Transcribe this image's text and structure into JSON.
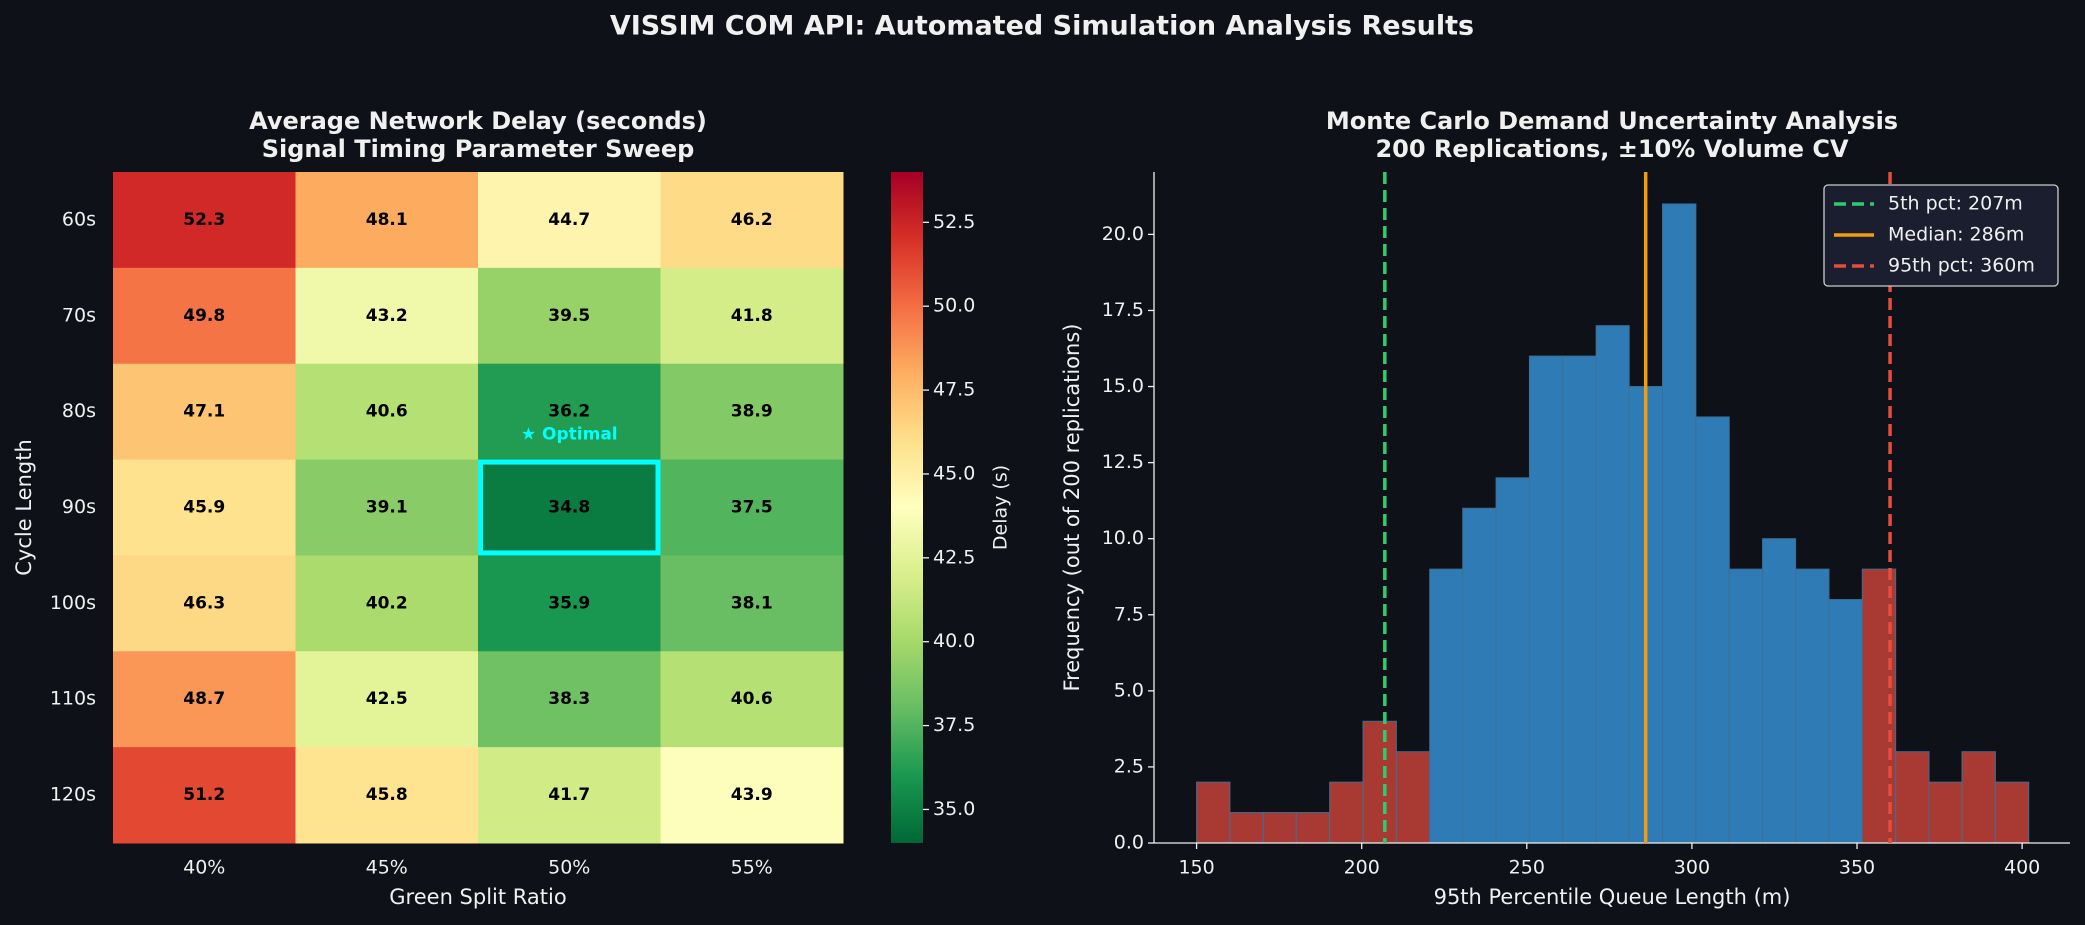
{
  "title": "VISSIM COM API: Automated Simulation Analysis Results",
  "chart_data": [
    {
      "type": "heatmap",
      "title": "Average Network Delay (seconds)",
      "subtitle": "Signal Timing Parameter Sweep",
      "x_label": "Green Split Ratio",
      "y_label": "Cycle Length",
      "x_categories": [
        "40%",
        "45%",
        "50%",
        "55%"
      ],
      "y_categories": [
        "60s",
        "70s",
        "80s",
        "90s",
        "100s",
        "110s",
        "120s"
      ],
      "values": [
        [
          52.3,
          48.1,
          44.7,
          46.2
        ],
        [
          49.8,
          43.2,
          39.5,
          41.8
        ],
        [
          47.1,
          40.6,
          36.2,
          38.9
        ],
        [
          45.9,
          39.1,
          34.8,
          37.5
        ],
        [
          46.3,
          40.2,
          35.9,
          38.1
        ],
        [
          48.7,
          42.5,
          38.3,
          40.6
        ],
        [
          51.2,
          45.8,
          41.7,
          43.9
        ]
      ],
      "colormap": [
        "#006837",
        "#1a9850",
        "#66bd63",
        "#a6d96a",
        "#d9ef8b",
        "#ffffbf",
        "#fee08b",
        "#fdae61",
        "#f46d43",
        "#d73027",
        "#a50026"
      ],
      "colorbar_label": "Delay (s)",
      "clim": [
        34.0,
        54.0
      ],
      "cticks": [
        {
          "value": 35,
          "label": "35.0"
        },
        37.5,
        {
          "value": 40,
          "label": "40.0"
        },
        42.5,
        {
          "value": 45,
          "label": "45.0"
        },
        47.5,
        {
          "value": 50,
          "label": "50.0"
        },
        52.5
      ],
      "highlight": {
        "row": 3,
        "col": 2,
        "label": "★ Optimal",
        "color": "#00ffff"
      }
    },
    {
      "type": "histogram",
      "title": "Monte Carlo Demand Uncertainty Analysis",
      "subtitle": "200 Replications, ±10% Volume CV",
      "x_label": "95th Percentile Queue Length (m)",
      "y_label": "Frequency (out of 200 replications)",
      "bins": [
        150,
        160.1,
        170.2,
        180.2,
        190.3,
        200.4,
        210.5,
        220.6,
        230.6,
        240.7,
        250.8,
        260.9,
        271.0,
        281.0,
        291.1,
        301.2,
        311.3,
        321.4,
        331.4,
        341.5,
        351.6,
        361.7,
        371.8,
        381.8,
        391.9,
        402.0
      ],
      "values": [
        2,
        1,
        1,
        1,
        2,
        4,
        3,
        9,
        11,
        12,
        16,
        16,
        17,
        15,
        21,
        14,
        9,
        10,
        9,
        8,
        9,
        3,
        2,
        3,
        2
      ],
      "colors": [
        "#a93a33",
        "#a93a33",
        "#a93a33",
        "#a93a33",
        "#a93a33",
        "#a93a33",
        "#a93a33",
        "#2f7bb5",
        "#2f7bb5",
        "#2f7bb5",
        "#2f7bb5",
        "#2f7bb5",
        "#2f7bb5",
        "#2f7bb5",
        "#2f7bb5",
        "#2f7bb5",
        "#2f7bb5",
        "#2f7bb5",
        "#2f7bb5",
        "#2f7bb5",
        "#a93a33",
        "#a93a33",
        "#a93a33",
        "#a93a33",
        "#a93a33"
      ],
      "xlim": [
        137.1,
        414.5
      ],
      "ylim": [
        0,
        22.05
      ],
      "xticks": [
        150,
        200,
        250,
        300,
        350,
        400
      ],
      "yticks": [
        {
          "value": 0,
          "label": "0.0"
        },
        {
          "value": 2.5,
          "label": "2.5"
        },
        {
          "value": 5,
          "label": "5.0"
        },
        {
          "value": 7.5,
          "label": "7.5"
        },
        {
          "value": 10,
          "label": "10.0"
        },
        {
          "value": 12.5,
          "label": "12.5"
        },
        {
          "value": 15,
          "label": "15.0"
        },
        {
          "value": 17.5,
          "label": "17.5"
        },
        {
          "value": 20,
          "label": "20.0"
        }
      ],
      "reference_lines": [
        {
          "name": "5th pct: 207m",
          "value": 207,
          "color": "#2ecc71",
          "dashed": true
        },
        {
          "name": "Median: 286m",
          "value": 286,
          "color": "#f39c12",
          "dashed": false
        },
        {
          "name": "95th pct: 360m",
          "value": 360,
          "color": "#e74c3c",
          "dashed": true
        }
      ],
      "legend": "upper right"
    }
  ]
}
